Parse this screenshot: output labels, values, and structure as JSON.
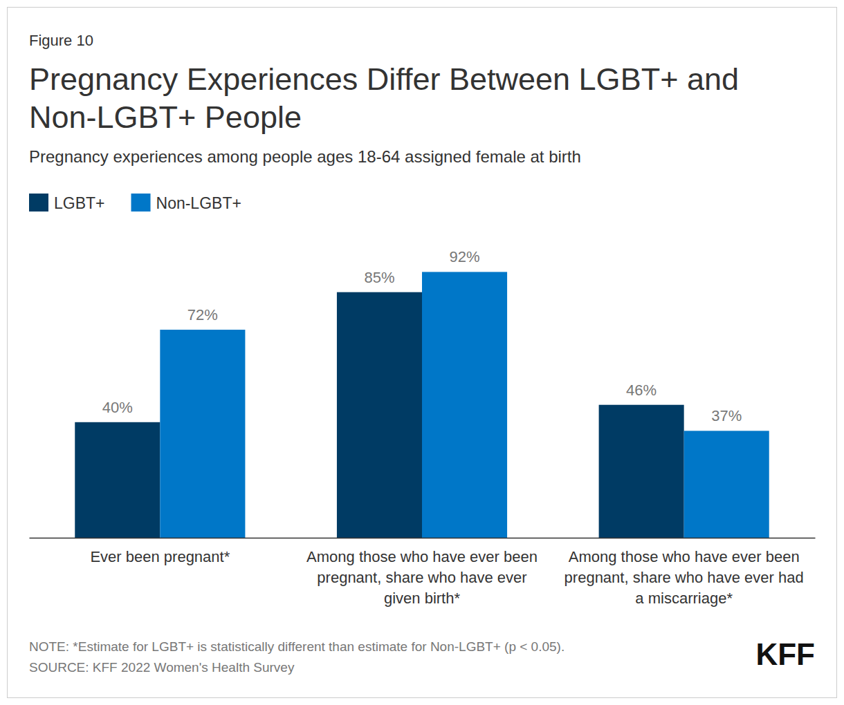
{
  "chart_data": {
    "type": "bar",
    "label": "Figure 10",
    "title": "Pregnancy Experiences Differ Between LGBT+ and Non-LGBT+ People",
    "subtitle": "Pregnancy experiences among people ages 18-64 assigned female at birth",
    "categories": [
      "Ever been pregnant*",
      "Among those who have ever been pregnant, share who have ever given birth*",
      "Among those who have ever been pregnant, share who have ever had a miscarriage*"
    ],
    "series": [
      {
        "name": "LGBT+",
        "color": "#003b64",
        "values": [
          40,
          85,
          46
        ],
        "value_labels": [
          "40%",
          "85%",
          "46%"
        ]
      },
      {
        "name": "Non-LGBT+",
        "color": "#0077c8",
        "values": [
          72,
          92,
          37
        ],
        "value_labels": [
          "72%",
          "92%",
          "37%"
        ]
      }
    ],
    "ylim": [
      0,
      100
    ],
    "tick_labels": "x",
    "data_labels": true,
    "legend": "top",
    "note": "NOTE: *Estimate for LGBT+ is statistically different than estimate for Non-LGBT+ (p < 0.05).",
    "source": "SOURCE: KFF 2022 Women's Health Survey",
    "logo": "KFF"
  }
}
